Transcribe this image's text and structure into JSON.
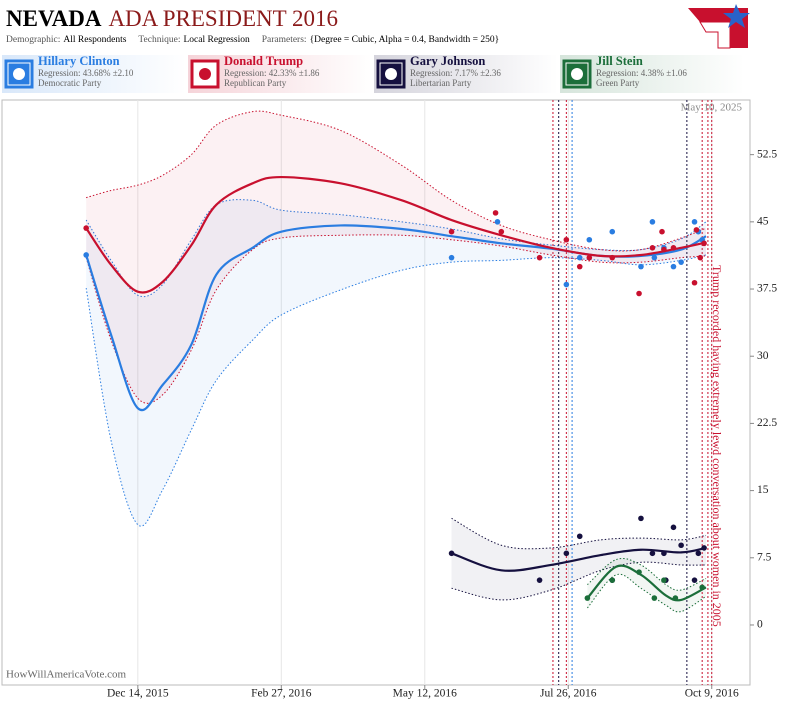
{
  "header": {
    "state": "NEVADA",
    "title": "ADA PRESIDENT 2016",
    "demographic_label": "Demographic:",
    "demographic": "All Respondents",
    "technique_label": "Technique:",
    "technique": "Local Regression",
    "parameters_label": "Parameters:",
    "parameters": "{Degree = Cubic, Alpha = 0.4, Bandwidth = 250}"
  },
  "chart_data": {
    "type": "regression-scatter",
    "date_stamp": "May 10, 2025",
    "source": "HowWillAmericaVote.com",
    "xlim": [
      "2015-10-04",
      "2016-10-29"
    ],
    "xticks": [
      {
        "value": "2015-12-14",
        "label": "Dec 14, 2015"
      },
      {
        "value": "2016-02-27",
        "label": "Feb 27, 2016"
      },
      {
        "value": "2016-05-12",
        "label": "May 12, 2016"
      },
      {
        "value": "2016-07-26",
        "label": "Jul 26, 2016"
      },
      {
        "value": "2016-10-09",
        "label": "Oct 9, 2016"
      }
    ],
    "ylim": [
      -6.7,
      58.6
    ],
    "yticks": [
      0,
      7.5,
      15,
      22.5,
      30,
      37.5,
      45,
      52.5
    ],
    "grid": true,
    "events": [
      {
        "date": "2016-07-18",
        "color": "#c8102e"
      },
      {
        "date": "2016-07-21",
        "color": "#15103f"
      },
      {
        "date": "2016-07-25",
        "color": "#c8102e"
      },
      {
        "date": "2016-07-28",
        "color": "#2a7de1"
      },
      {
        "date": "2016-09-26",
        "color": "#15103f"
      },
      {
        "date": "2016-10-04",
        "color": "#c8102e"
      },
      {
        "date": "2016-10-07",
        "color": "#c8102e"
      },
      {
        "date": "2016-10-09",
        "color": "#c8102e"
      }
    ],
    "annotation": {
      "date": "2016-10-07",
      "text": "Trump recorded having extremely lewd conversation about women in 2005"
    },
    "series": [
      {
        "name": "Hillary Clinton",
        "regression_label": "Regression: 43.68% ±2.10",
        "party": "Democratic Party",
        "color": "#2a7de1",
        "x": [
          "2015-11-17",
          "2015-11-30",
          "2015-12-14",
          "2015-12-27",
          "2016-01-11",
          "2016-01-24",
          "2016-02-12",
          "2016-02-27",
          "2016-03-29",
          "2016-04-30",
          "2016-05-26",
          "2016-06-21",
          "2016-07-17",
          "2016-08-12",
          "2016-09-02",
          "2016-09-23",
          "2016-10-06"
        ],
        "values": [
          41.3,
          32.4,
          24.2,
          26.8,
          31.3,
          39.1,
          42.1,
          43.9,
          44.6,
          44.2,
          43.4,
          42.6,
          42.0,
          41.2,
          41.2,
          41.9,
          43.4
        ],
        "upper": [
          45.2,
          40.7,
          36.8,
          38.0,
          43.0,
          46.9,
          47.4,
          46.3,
          45.8,
          45.0,
          44.2,
          43.1,
          42.4,
          41.9,
          41.9,
          43.1,
          45.0
        ],
        "lower": [
          37.6,
          20.6,
          11.2,
          15.1,
          21.8,
          27.3,
          31.8,
          34.6,
          37.4,
          39.6,
          40.5,
          40.7,
          41.0,
          40.7,
          40.2,
          40.7,
          41.3
        ],
        "polls": {
          "x": [
            "2015-11-17",
            "2016-05-26",
            "2016-06-19",
            "2016-07-25",
            "2016-08-01",
            "2016-08-06",
            "2016-08-18",
            "2016-09-02",
            "2016-09-08",
            "2016-09-09",
            "2016-09-14",
            "2016-09-19",
            "2016-09-23",
            "2016-09-30",
            "2016-10-02",
            "2016-10-04"
          ],
          "values": [
            41.3,
            41.0,
            45.0,
            38.0,
            41.0,
            43.0,
            43.9,
            40.0,
            45.0,
            41.0,
            42.1,
            40.0,
            40.5,
            45.0,
            43.9,
            43.0
          ]
        }
      },
      {
        "name": "Donald Trump",
        "regression_label": "Regression: 42.33% ±1.86",
        "party": "Republican Party",
        "color": "#c8102e",
        "x": [
          "2015-11-17",
          "2015-11-30",
          "2015-12-14",
          "2015-12-27",
          "2016-01-11",
          "2016-01-24",
          "2016-02-12",
          "2016-02-27",
          "2016-03-29",
          "2016-04-30",
          "2016-05-26",
          "2016-06-21",
          "2016-07-17",
          "2016-08-12",
          "2016-09-02",
          "2016-09-23",
          "2016-10-06"
        ],
        "values": [
          44.3,
          40.2,
          37.2,
          38.3,
          42.4,
          46.9,
          49.3,
          50.0,
          49.3,
          47.4,
          45.2,
          43.5,
          42.1,
          41.2,
          41.3,
          42.1,
          42.7
        ],
        "upper": [
          47.7,
          48.5,
          49.1,
          50.2,
          52.5,
          55.8,
          57.3,
          56.9,
          55.2,
          51.3,
          47.4,
          44.6,
          43.0,
          41.9,
          41.9,
          43.2,
          44.3
        ],
        "lower": [
          41.0,
          31.8,
          25.3,
          25.7,
          30.7,
          37.4,
          41.9,
          43.2,
          43.5,
          43.5,
          43.0,
          42.3,
          41.3,
          40.5,
          40.5,
          41.0,
          41.2
        ],
        "polls": {
          "x": [
            "2015-11-17",
            "2016-05-26",
            "2016-06-18",
            "2016-06-21",
            "2016-07-11",
            "2016-07-25",
            "2016-08-01",
            "2016-08-06",
            "2016-08-18",
            "2016-09-01",
            "2016-09-08",
            "2016-09-13",
            "2016-09-14",
            "2016-09-19",
            "2016-09-30",
            "2016-10-01",
            "2016-10-03",
            "2016-10-05"
          ],
          "values": [
            44.3,
            43.9,
            46.0,
            43.9,
            41.0,
            43.0,
            40.0,
            41.0,
            41.0,
            37.0,
            42.1,
            43.9,
            41.9,
            42.1,
            38.2,
            44.1,
            41.0,
            42.6
          ]
        }
      },
      {
        "name": "Gary Johnson",
        "regression_label": "Regression: 7.17% ±2.36",
        "party": "Libertarian Party",
        "color": "#15103f",
        "x": [
          "2016-05-26",
          "2016-06-21",
          "2016-07-17",
          "2016-08-12",
          "2016-09-02",
          "2016-09-23",
          "2016-10-06"
        ],
        "values": [
          8.0,
          6.1,
          6.7,
          7.8,
          8.4,
          8.1,
          8.6
        ],
        "upper": [
          11.9,
          8.9,
          8.6,
          9.5,
          9.7,
          9.5,
          10.0
        ],
        "lower": [
          4.1,
          2.8,
          3.9,
          6.1,
          7.0,
          6.7,
          6.7
        ],
        "polls": {
          "x": [
            "2016-05-26",
            "2016-07-11",
            "2016-07-25",
            "2016-08-01",
            "2016-08-18",
            "2016-09-02",
            "2016-09-08",
            "2016-09-14",
            "2016-09-15",
            "2016-09-19",
            "2016-09-23",
            "2016-09-30",
            "2016-10-02",
            "2016-10-05"
          ],
          "values": [
            8.0,
            5.0,
            8.0,
            9.9,
            5.0,
            11.9,
            8.0,
            8.0,
            5.0,
            10.9,
            8.9,
            5.0,
            8.0,
            8.6
          ]
        }
      },
      {
        "name": "Jill Stein",
        "regression_label": "Regression: 4.38% ±1.06",
        "party": "Green Party",
        "color": "#1b6e3a",
        "x": [
          "2016-08-05",
          "2016-08-20",
          "2016-09-02",
          "2016-09-15",
          "2016-09-23",
          "2016-10-06"
        ],
        "values": [
          3.0,
          6.5,
          5.6,
          3.3,
          2.8,
          4.2
        ],
        "upper": [
          4.5,
          7.3,
          6.7,
          4.5,
          3.9,
          5.2
        ],
        "lower": [
          1.9,
          5.6,
          4.1,
          2.2,
          1.5,
          3.2
        ],
        "polls": {
          "x": [
            "2016-08-05",
            "2016-08-18",
            "2016-09-01",
            "2016-09-09",
            "2016-09-14",
            "2016-09-20",
            "2016-10-04"
          ],
          "values": [
            3.0,
            5.0,
            5.9,
            3.0,
            5.0,
            3.0,
            4.2
          ]
        }
      }
    ]
  }
}
